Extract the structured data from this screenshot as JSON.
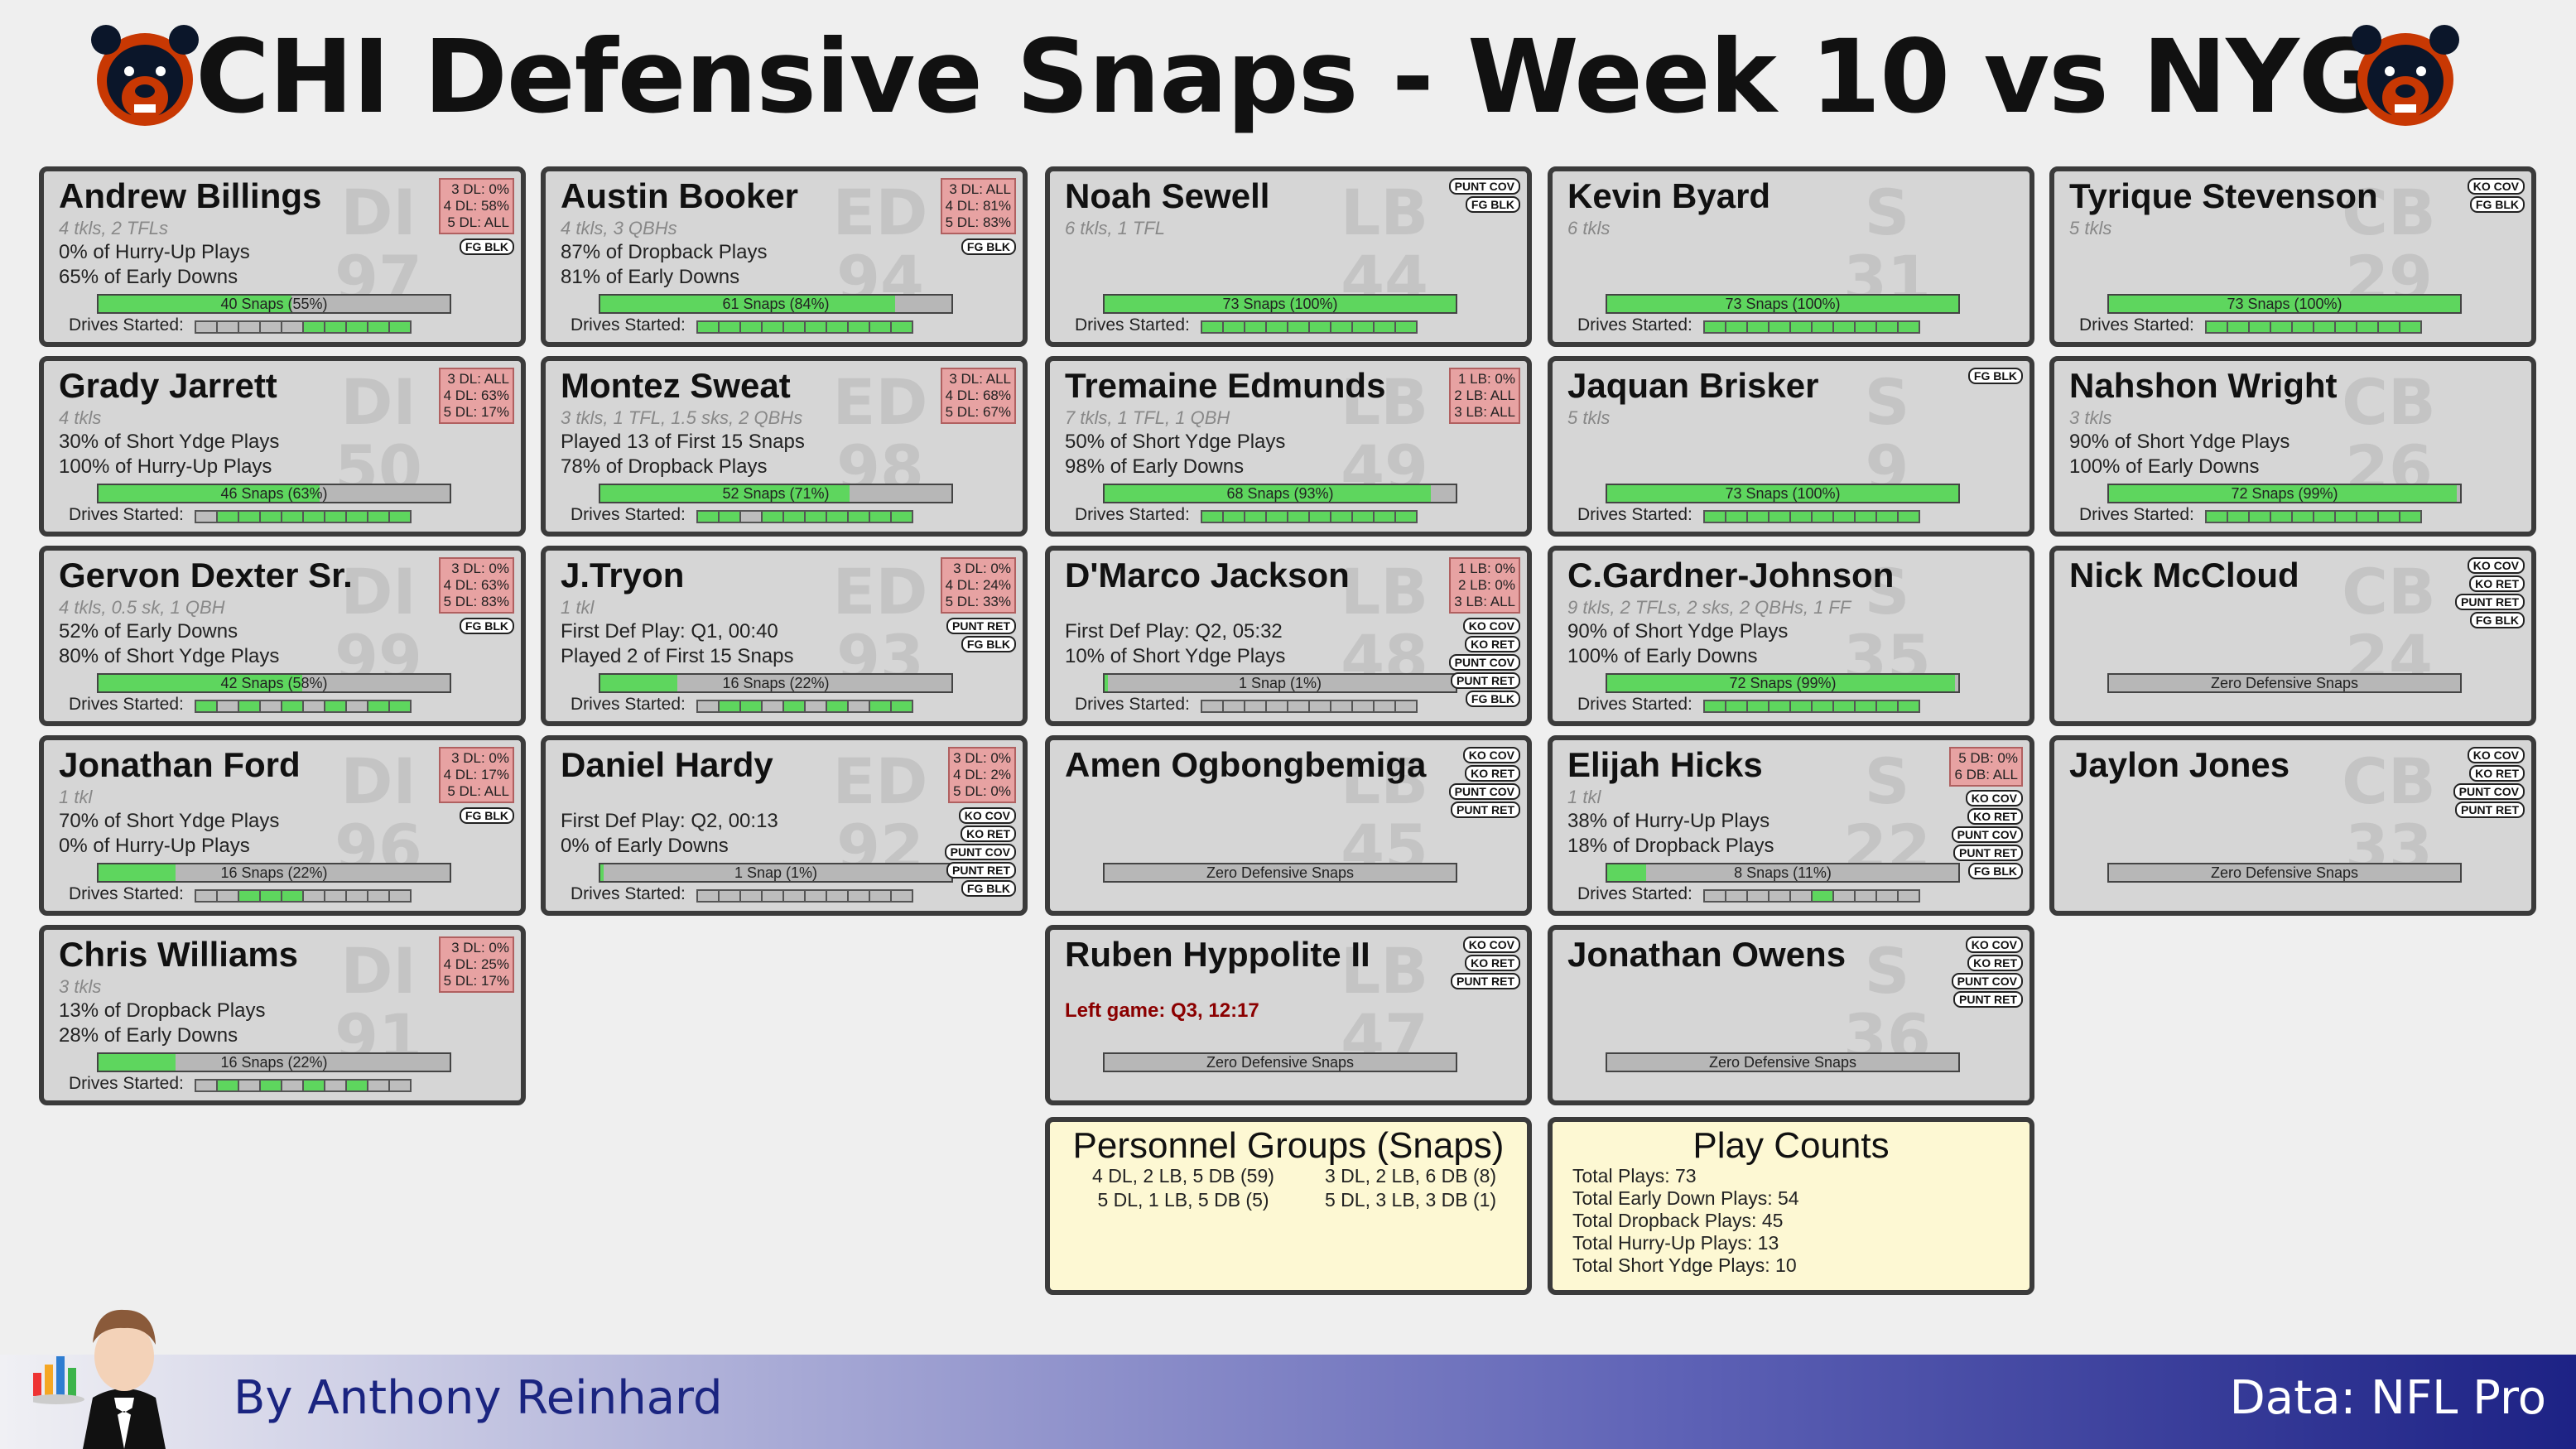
{
  "title": "CHI Defensive Snaps - Week 10 vs NYG",
  "footer": {
    "credit": "By Anthony Reinhard",
    "source": "Data: NFL Pro"
  },
  "colors": {
    "snap_fill": "#5ed65e",
    "pct_box": "#e7a2a2",
    "panel": "#fdf8d3",
    "footer_dark": "#1d2285"
  },
  "players": [
    {
      "id": "billings",
      "name": "Andrew Billings",
      "pos": "DI",
      "num": "97",
      "sub": "4 tkls, 2 TFLs",
      "line1": "0% of Hurry-Up Plays",
      "line2": "65% of Early Downs",
      "snaps_label": "40 Snaps (55%)",
      "snap_pct": 55,
      "drives": "0000011111",
      "pct": [
        "3 DL: 0%",
        "4 DL: 58%",
        "5 DL: ALL"
      ],
      "tags": [
        "FG BLK"
      ]
    },
    {
      "id": "jarrett",
      "name": "Grady Jarrett",
      "pos": "DI",
      "num": "50",
      "sub": "4 tkls",
      "line1": "30% of Short Ydge Plays",
      "line2": "100% of Hurry-Up Plays",
      "snaps_label": "46 Snaps (63%)",
      "snap_pct": 63,
      "drives": "0111111111",
      "pct": [
        "3 DL: ALL",
        "4 DL: 63%",
        "5 DL: 17%"
      ],
      "tags": []
    },
    {
      "id": "dexter",
      "name": "Gervon Dexter Sr.",
      "pos": "DI",
      "num": "99",
      "sub": "4 tkls, 0.5 sk, 1 QBH",
      "line1": "52% of Early Downs",
      "line2": "80% of Short Ydge Plays",
      "snaps_label": "42 Snaps (58%)",
      "snap_pct": 58,
      "drives": "1010101011",
      "pct": [
        "3 DL: 0%",
        "4 DL: 63%",
        "5 DL: 83%"
      ],
      "tags": [
        "FG BLK"
      ]
    },
    {
      "id": "ford",
      "name": "Jonathan Ford",
      "pos": "DI",
      "num": "96",
      "sub": "1 tkl",
      "line1": "70% of Short Ydge Plays",
      "line2": "0% of Hurry-Up Plays",
      "snaps_label": "16 Snaps (22%)",
      "snap_pct": 22,
      "drives": "0011100000",
      "pct": [
        "3 DL: 0%",
        "4 DL: 17%",
        "5 DL: ALL"
      ],
      "tags": [
        "FG BLK"
      ]
    },
    {
      "id": "williams",
      "name": "Chris Williams",
      "pos": "DI",
      "num": "91",
      "sub": "3 tkls",
      "line1": "13% of Dropback Plays",
      "line2": "28% of Early Downs",
      "snaps_label": "16 Snaps (22%)",
      "snap_pct": 22,
      "drives": "0101010100",
      "pct": [
        "3 DL: 0%",
        "4 DL: 25%",
        "5 DL: 17%"
      ],
      "tags": []
    },
    {
      "id": "booker",
      "name": "Austin Booker",
      "pos": "ED",
      "num": "94",
      "sub": "4 tkls, 3 QBHs",
      "line1": "87% of Dropback Plays",
      "line2": "81% of Early Downs",
      "snaps_label": "61 Snaps (84%)",
      "snap_pct": 84,
      "drives": "1111111111",
      "pct": [
        "3 DL: ALL",
        "4 DL: 81%",
        "5 DL: 83%"
      ],
      "tags": [
        "FG BLK"
      ]
    },
    {
      "id": "sweat",
      "name": "Montez Sweat",
      "pos": "ED",
      "num": "98",
      "sub": "3 tkls, 1 TFL, 1.5 sks, 2 QBHs",
      "line1": "Played 13 of First 15 Snaps",
      "line2": "78% of Dropback Plays",
      "snaps_label": "52 Snaps (71%)",
      "snap_pct": 71,
      "drives": "1101111111",
      "pct": [
        "3 DL: ALL",
        "4 DL: 68%",
        "5 DL: 67%"
      ],
      "tags": []
    },
    {
      "id": "tryon",
      "name": "J.Tryon",
      "pos": "ED",
      "num": "93",
      "sub": "1 tkl",
      "line1": "First Def Play: Q1, 00:40",
      "line2": "Played 2 of First 15 Snaps",
      "snaps_label": "16 Snaps (22%)",
      "snap_pct": 22,
      "drives": "0110101011",
      "pct": [
        "3 DL: 0%",
        "4 DL: 24%",
        "5 DL: 33%"
      ],
      "tags": [
        "PUNT RET",
        "FG BLK"
      ]
    },
    {
      "id": "hardy",
      "name": "Daniel Hardy",
      "pos": "ED",
      "num": "92",
      "sub": "",
      "line1": "First Def Play: Q2, 00:13",
      "line2": "0% of Early Downs",
      "snaps_label": "1 Snap (1%)",
      "snap_pct": 1,
      "drives": "0000000000",
      "pct": [
        "3 DL: 0%",
        "4 DL: 2%",
        "5 DL: 0%"
      ],
      "tags": [
        "KO COV",
        "KO RET",
        "PUNT COV",
        "PUNT RET",
        "FG BLK"
      ]
    },
    {
      "id": "sewell",
      "name": "Noah Sewell",
      "pos": "LB",
      "num": "44",
      "sub": "6 tkls, 1 TFL",
      "line1": "",
      "line2": "",
      "snaps_label": "73 Snaps (100%)",
      "snap_pct": 100,
      "drives": "1111111111",
      "pct": [],
      "tags": [
        "PUNT COV",
        "FG BLK"
      ]
    },
    {
      "id": "edmunds",
      "name": "Tremaine Edmunds",
      "pos": "LB",
      "num": "49",
      "sub": "7 tkls, 1 TFL, 1 QBH",
      "line1": "50% of Short Ydge Plays",
      "line2": "98% of Early Downs",
      "snaps_label": "68 Snaps (93%)",
      "snap_pct": 93,
      "drives": "1111111111",
      "pct": [
        "1 LB: 0%",
        "2 LB: ALL",
        "3 LB: ALL"
      ],
      "tags": []
    },
    {
      "id": "jackson",
      "name": "D'Marco Jackson",
      "pos": "LB",
      "num": "48",
      "sub": "",
      "line1": "First Def Play: Q2, 05:32",
      "line2": "10% of Short Ydge Plays",
      "snaps_label": "1 Snap (1%)",
      "snap_pct": 1,
      "drives": "0000000000",
      "pct": [
        "1 LB: 0%",
        "2 LB: 0%",
        "3 LB: ALL"
      ],
      "tags": [
        "KO COV",
        "KO RET",
        "PUNT COV",
        "PUNT RET",
        "FG BLK"
      ]
    },
    {
      "id": "ogbongbemiga",
      "name": "Amen Ogbongbemiga",
      "pos": "LB",
      "num": "45",
      "sub": "",
      "line1": "",
      "line2": "",
      "snaps_label": "Zero Defensive Snaps",
      "snap_pct": 0,
      "drives": "",
      "pct": [],
      "tags": [
        "KO COV",
        "KO RET",
        "PUNT COV",
        "PUNT RET"
      ]
    },
    {
      "id": "hyppolite",
      "name": "Ruben Hyppolite II",
      "pos": "LB",
      "num": "47",
      "sub": "",
      "line1": "",
      "line2": "",
      "left_game": "Left game: Q3, 12:17",
      "snaps_label": "Zero Defensive Snaps",
      "snap_pct": 0,
      "drives": "",
      "pct": [],
      "tags": [
        "KO COV",
        "KO RET",
        "PUNT RET"
      ]
    },
    {
      "id": "byard",
      "name": "Kevin Byard",
      "pos": "S",
      "num": "31",
      "sub": "6 tkls",
      "line1": "",
      "line2": "",
      "snaps_label": "73 Snaps (100%)",
      "snap_pct": 100,
      "drives": "1111111111",
      "pct": [],
      "tags": []
    },
    {
      "id": "brisker",
      "name": "Jaquan Brisker",
      "pos": "S",
      "num": "9",
      "sub": "5 tkls",
      "line1": "",
      "line2": "",
      "snaps_label": "73 Snaps (100%)",
      "snap_pct": 100,
      "drives": "1111111111",
      "pct": [],
      "tags": [
        "FG BLK"
      ]
    },
    {
      "id": "gardner",
      "name": "C.Gardner-Johnson",
      "pos": "S",
      "num": "35",
      "sub": "9 tkls, 2 TFLs, 2 sks, 2 QBHs, 1 FF",
      "line1": "90% of Short Ydge Plays",
      "line2": "100% of Early Downs",
      "snaps_label": "72 Snaps (99%)",
      "snap_pct": 99,
      "drives": "1111111111",
      "pct": [],
      "tags": []
    },
    {
      "id": "hicks",
      "name": "Elijah Hicks",
      "pos": "S",
      "num": "22",
      "sub": "1 tkl",
      "line1": "38% of Hurry-Up Plays",
      "line2": "18% of Dropback Plays",
      "snaps_label": "8 Snaps (11%)",
      "snap_pct": 11,
      "drives": "0000010000",
      "pct": [
        "5 DB: 0%",
        "6 DB: ALL"
      ],
      "tags": [
        "KO COV",
        "KO RET",
        "PUNT COV",
        "PUNT RET",
        "FG BLK"
      ]
    },
    {
      "id": "owens",
      "name": "Jonathan Owens",
      "pos": "S",
      "num": "36",
      "sub": "",
      "line1": "",
      "line2": "",
      "snaps_label": "Zero Defensive Snaps",
      "snap_pct": 0,
      "drives": "",
      "pct": [],
      "tags": [
        "KO COV",
        "KO RET",
        "PUNT COV",
        "PUNT RET"
      ]
    },
    {
      "id": "stevenson",
      "name": "Tyrique Stevenson",
      "pos": "CB",
      "num": "29",
      "sub": "5 tkls",
      "line1": "",
      "line2": "",
      "snaps_label": "73 Snaps (100%)",
      "snap_pct": 100,
      "drives": "1111111111",
      "pct": [],
      "tags": [
        "KO COV",
        "FG BLK"
      ]
    },
    {
      "id": "wright",
      "name": "Nahshon Wright",
      "pos": "CB",
      "num": "26",
      "sub": "3 tkls",
      "line1": "90% of Short Ydge Plays",
      "line2": "100% of Early Downs",
      "snaps_label": "72 Snaps (99%)",
      "snap_pct": 99,
      "drives": "1111111111",
      "pct": [],
      "tags": []
    },
    {
      "id": "mccloud",
      "name": "Nick McCloud",
      "pos": "CB",
      "num": "24",
      "sub": "",
      "line1": "",
      "line2": "",
      "snaps_label": "Zero Defensive Snaps",
      "snap_pct": 0,
      "drives": "",
      "pct": [],
      "tags": [
        "KO COV",
        "KO RET",
        "PUNT RET",
        "FG BLK"
      ]
    },
    {
      "id": "jones",
      "name": "Jaylon Jones",
      "pos": "CB",
      "num": "33",
      "sub": "",
      "line1": "",
      "line2": "",
      "snaps_label": "Zero Defensive Snaps",
      "snap_pct": 0,
      "drives": "",
      "pct": [],
      "tags": [
        "KO COV",
        "KO RET",
        "PUNT COV",
        "PUNT RET"
      ]
    }
  ],
  "drives_label": "Drives Started:",
  "personnel": {
    "title": "Personnel Groups (Snaps)",
    "groups": [
      "4 DL, 2 LB, 5 DB (59)",
      "3 DL, 2 LB, 6 DB (8)",
      "5 DL, 1 LB, 5 DB (5)",
      "5 DL, 3 LB, 3 DB (1)"
    ]
  },
  "play_counts": {
    "title": "Play Counts",
    "items": [
      "Total Plays: 73",
      "Total Early Down Plays: 54",
      "Total Dropback Plays: 45",
      "Total Hurry-Up Plays: 13",
      "Total Short Ydge Plays: 10"
    ]
  }
}
